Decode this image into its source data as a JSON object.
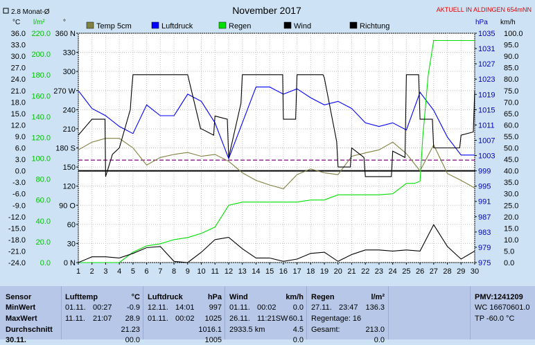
{
  "header": {
    "title": "November 2017",
    "station": "AKTUELL IN ALDINGEN 654mNN",
    "avg_marker": "2.8 Monat-Ø",
    "unit_c": "°C",
    "unit_lm2": "l/m²",
    "unit_deg": "°",
    "unit_hpa": "hPa",
    "unit_kmh": "km/h"
  },
  "legend": [
    {
      "label": "Temp 5cm",
      "color": "#808040"
    },
    {
      "label": "Luftdruck",
      "color": "#0000ff"
    },
    {
      "label": "Regen",
      "color": "#00e000"
    },
    {
      "label": "Wind",
      "color": "#000000"
    },
    {
      "label": "Richtung",
      "color": "#000000"
    }
  ],
  "chart_data": {
    "type": "line",
    "title": "November 2017",
    "x": [
      1,
      2,
      3,
      4,
      5,
      6,
      7,
      8,
      9,
      10,
      11,
      12,
      13,
      14,
      15,
      16,
      17,
      18,
      19,
      20,
      21,
      22,
      23,
      24,
      25,
      26,
      27,
      28,
      29,
      30
    ],
    "xlim": [
      1,
      30
    ],
    "x_ticks": [
      "1",
      "2",
      "3",
      "4",
      "5",
      "6",
      "7",
      "8",
      "9",
      "10",
      "11",
      "12",
      "13",
      "14",
      "15",
      "16",
      "17",
      "18",
      "19",
      "20",
      "21",
      "22",
      "23",
      "24",
      "25",
      "26",
      "27",
      "28",
      "29",
      "30"
    ],
    "axes": {
      "temp": {
        "label": "°C",
        "range": [
          -24,
          36
        ],
        "ticks": [
          "36.0",
          "33.0",
          "30.0",
          "27.0",
          "24.0",
          "21.0",
          "18.0",
          "15.0",
          "12.0",
          "9.0",
          "6.0",
          "3.0",
          "0.0",
          "-3.0",
          "-6.0",
          "-9.0",
          "-12.0",
          "-15.0",
          "-18.0",
          "-21.0",
          "-24.0"
        ]
      },
      "rain": {
        "label": "l/m²",
        "range": [
          0,
          220
        ],
        "ticks": [
          "220.0",
          "200.0",
          "180.0",
          "160.0",
          "140.0",
          "120.0",
          "100.0",
          "80.0",
          "60.0",
          "40.0",
          "20.0",
          "0.0"
        ]
      },
      "direction": {
        "label": "°",
        "range": [
          0,
          360
        ],
        "ticks": [
          "360 N",
          "330",
          "300",
          "270 W",
          "240",
          "210",
          "180 S",
          "150",
          "120",
          "90 O",
          "60",
          "30",
          "0 N"
        ]
      },
      "pressure": {
        "label": "hPa",
        "range": [
          975,
          1039
        ],
        "ticks": [
          "1035",
          "1031",
          "1027",
          "1023",
          "1019",
          "1015",
          "1011",
          "1007",
          "1003",
          "999",
          "995",
          "991",
          "987",
          "983",
          "979",
          "975"
        ]
      },
      "wind": {
        "label": "km/h",
        "range": [
          0,
          100
        ],
        "ticks": [
          "100.0",
          "95.0",
          "90.0",
          "85.0",
          "80.0",
          "75.0",
          "70.0",
          "65.0",
          "60.0",
          "55.0",
          "50.0",
          "45.0",
          "40.0",
          "35.0",
          "30.0",
          "25.0",
          "20.0",
          "15.0",
          "10.0",
          "5.0",
          "0.0"
        ]
      }
    },
    "series": [
      {
        "name": "Temp 5cm",
        "axis": "temp",
        "color": "#808040",
        "x": [
          1,
          2,
          3,
          4,
          5,
          6,
          7,
          8,
          9,
          10,
          11,
          12,
          13,
          14,
          15,
          16,
          17,
          18,
          19,
          20,
          21,
          22,
          23,
          24,
          25,
          26,
          27,
          28,
          29,
          30
        ],
        "values": [
          5.5,
          7.5,
          8.5,
          8.5,
          6,
          1.5,
          3.5,
          4.3,
          4.8,
          3.8,
          4.3,
          2.5,
          -0.5,
          -2.5,
          -3.7,
          -4.7,
          -1,
          0.5,
          -0.5,
          -1,
          3.8,
          4.7,
          5.5,
          7.5,
          4.5,
          0,
          6.8,
          -0.7,
          -2.5,
          -4.5
        ]
      },
      {
        "name": "Luftdruck",
        "axis": "pressure",
        "color": "#0000ff",
        "x": [
          1,
          2,
          3,
          4,
          5,
          6,
          7,
          8,
          9,
          10,
          11,
          12,
          13,
          14,
          15,
          16,
          17,
          18,
          19,
          20,
          21,
          22,
          23,
          24,
          25,
          26,
          27,
          28,
          29,
          30
        ],
        "values": [
          1023,
          1018,
          1016,
          1013,
          1011,
          1019,
          1016,
          1016,
          1022,
          1020,
          1014,
          1004,
          1014,
          1024,
          1024,
          1022,
          1023.5,
          1021,
          1019,
          1020,
          1018,
          1014,
          1013,
          1014,
          1012,
          1022.5,
          1017.5,
          1010,
          1005,
          1005
        ]
      },
      {
        "name": "Regen",
        "axis": "rain",
        "color": "#00e000",
        "x": [
          1,
          2,
          3,
          4,
          5,
          6,
          7,
          8,
          9,
          10,
          11,
          12,
          13,
          14,
          15,
          16,
          17,
          18,
          19,
          20,
          21,
          22,
          23,
          24,
          25,
          25.6,
          26,
          26.2,
          26.6,
          27,
          28,
          29,
          30
        ],
        "values": [
          0,
          0,
          0,
          0,
          10,
          16,
          18,
          22,
          24,
          28,
          34,
          55,
          58,
          58,
          58,
          58,
          58,
          60,
          60,
          65,
          65,
          65,
          65,
          66,
          76,
          76,
          78,
          120,
          180,
          213,
          213,
          213,
          213
        ]
      },
      {
        "name": "Wind",
        "axis": "wind",
        "color": "#000000",
        "x": [
          1,
          2,
          3,
          4,
          5,
          6,
          7,
          8,
          9,
          10,
          11,
          12,
          13,
          14,
          15,
          16,
          17,
          18,
          19,
          20,
          21,
          22,
          23,
          24,
          25,
          26,
          27,
          28,
          29,
          30
        ],
        "values": [
          0,
          2.5,
          2.5,
          2,
          4,
          6.5,
          7,
          0.5,
          0,
          4.5,
          10,
          11,
          6,
          2,
          2,
          0.5,
          1.5,
          4,
          4.5,
          0.5,
          3.5,
          5.5,
          5.5,
          5,
          5.5,
          5,
          16.5,
          7,
          1.5,
          5
        ]
      },
      {
        "name": "Richtung",
        "axis": "direction",
        "color": "#000000",
        "x": [
          1,
          2,
          2.95,
          3,
          3.5,
          4,
          4.8,
          4.9,
          5,
          6,
          7,
          8,
          9,
          9.95,
          10,
          10.9,
          11,
          11.9,
          12,
          12.9,
          13,
          14,
          15,
          15.95,
          16,
          16.9,
          17,
          18,
          18.9,
          19,
          19.9,
          20,
          20.9,
          21,
          21.9,
          22,
          23,
          23.9,
          24,
          24.9,
          25,
          25.9,
          26,
          26.9,
          27,
          28,
          28.9,
          29,
          29.9,
          30
        ],
        "values": [
          200,
          225,
          225,
          135,
          170,
          180,
          240,
          270,
          295,
          295,
          295,
          295,
          295,
          210,
          210,
          200,
          230,
          225,
          165,
          250,
          295,
          295,
          295,
          295,
          225,
          225,
          295,
          295,
          295,
          290,
          190,
          150,
          150,
          180,
          165,
          135,
          135,
          135,
          175,
          165,
          295,
          295,
          225,
          225,
          180,
          180,
          180,
          200,
          205,
          270
        ]
      }
    ],
    "reference_lines": [
      {
        "name": "2.8 Monat-Ø",
        "axis": "temp",
        "value": 2.8,
        "style": "dashed",
        "color": "#800080"
      },
      {
        "name": "0 °C",
        "axis": "temp",
        "value": 0,
        "style": "solid",
        "color": "#000000"
      }
    ],
    "markers": [
      {
        "day": 4,
        "symbol": "○"
      },
      {
        "day": 19,
        "symbol": "●"
      }
    ],
    "grid": true,
    "legend_position": "top"
  },
  "stats": {
    "sensor": {
      "header": "Sensor",
      "rows": [
        "MinWert",
        "MaxWert",
        "Durchschnitt",
        "30.11."
      ]
    },
    "lufttemp": {
      "header": "Lufttemp",
      "unit": "°C",
      "rows": [
        [
          "01.11.",
          "00:27",
          "-0.9"
        ],
        [
          "11.11.",
          "21:07",
          "28.9"
        ],
        [
          "",
          "",
          "21.23"
        ],
        [
          "",
          "",
          "00.0"
        ]
      ]
    },
    "luftdruck": {
      "header": "Luftdruck",
      "unit": "hPa",
      "rows": [
        [
          "12.11.",
          "14:01",
          "997"
        ],
        [
          "01.11.",
          "00:02",
          "1025"
        ],
        [
          "",
          "",
          "1016.1"
        ],
        [
          "",
          "",
          "1005"
        ]
      ]
    },
    "wind": {
      "header": "Wind",
      "unit": "km/h",
      "rows": [
        [
          "01.11.",
          "00:02",
          "0.0"
        ],
        [
          "26.11.",
          "11:21SW",
          "60.1"
        ],
        [
          "2933.5 km",
          "",
          "4.5"
        ],
        [
          "",
          "",
          "0.0"
        ]
      ]
    },
    "regen": {
      "header": "Regen",
      "unit": "l/m²",
      "rows": [
        [
          "27.11.",
          "23:47",
          "136.3"
        ],
        [
          "Regentage: 16",
          "",
          ""
        ],
        [
          "Gesamt:",
          "",
          "213.0"
        ],
        [
          "",
          "",
          "0.0"
        ]
      ]
    },
    "pmv": {
      "header": "PMV:1241209",
      "rows": [
        "WC 16670601.0",
        "TP -60.0 °C"
      ]
    }
  }
}
